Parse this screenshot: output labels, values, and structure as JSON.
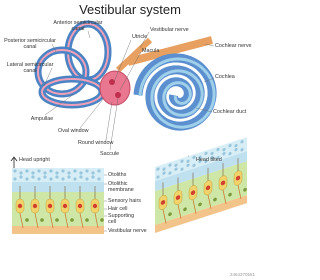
{
  "title": "Vestibular system",
  "ear_labels": [
    [
      "Anterior semicircular",
      "canal"
    ],
    [
      "Posterior semicircular",
      "canal"
    ],
    [
      "Lateral semicircular",
      "canal"
    ],
    [
      "Utricle"
    ],
    [
      "Vestibular nerve"
    ],
    [
      "Macula"
    ],
    [
      "Cochlear nerve"
    ],
    [
      "Cochlea"
    ],
    [
      "Cochlear duct"
    ],
    [
      "Ampullae"
    ],
    [
      "Oval window"
    ],
    [
      "Round window"
    ],
    [
      "Saccule"
    ]
  ],
  "panels": [
    "Head upright",
    "Head tilted"
  ],
  "layer_labels": [
    [
      "Otoliths"
    ],
    [
      "Otolithic",
      "membrane"
    ],
    [
      "Sensory hairs"
    ],
    [
      "Hair cell"
    ],
    [
      "Supporting",
      "cell"
    ],
    [
      "Vestibular nerve"
    ]
  ],
  "image_id": "2464370551"
}
